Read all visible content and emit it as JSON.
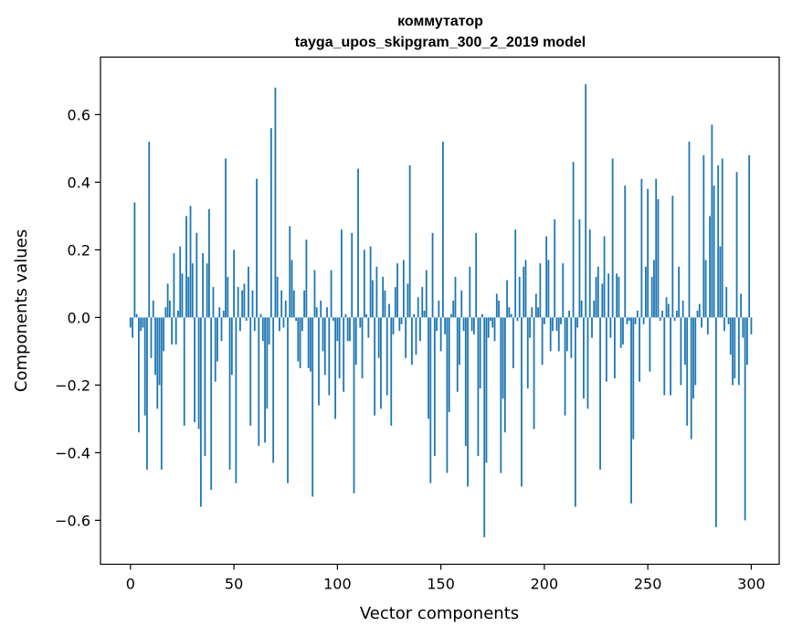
{
  "chart_data": {
    "type": "bar",
    "title": "коммутатор",
    "subtitle": "tayga_upos_skipgram_300_2_2019 model",
    "xlabel": "Vector components",
    "ylabel": "Components values",
    "xlim": [
      -14.5,
      313.5
    ],
    "ylim": [
      -0.73,
      0.77
    ],
    "xticks": [
      0,
      50,
      100,
      150,
      200,
      250,
      300
    ],
    "yticks": [
      -0.6,
      -0.4,
      -0.2,
      0.0,
      0.2,
      0.4,
      0.6
    ],
    "ytick_labels": [
      "−0.6",
      "−0.4",
      "−0.2",
      "0.0",
      "0.2",
      "0.4",
      "0.6"
    ],
    "color": "#1f77b4",
    "grid": false,
    "values": [
      -0.03,
      -0.06,
      0.34,
      0.01,
      -0.34,
      -0.04,
      -0.03,
      -0.29,
      -0.45,
      0.52,
      -0.12,
      0.05,
      -0.17,
      -0.27,
      -0.2,
      -0.45,
      -0.1,
      0.03,
      0.1,
      0.05,
      -0.08,
      0.19,
      -0.08,
      0.02,
      0.21,
      0.13,
      -0.32,
      0.3,
      0.12,
      0.33,
      0.16,
      -0.31,
      0.25,
      -0.33,
      -0.56,
      0.19,
      -0.41,
      0.16,
      0.32,
      -0.51,
      0.09,
      -0.19,
      -0.13,
      0.03,
      -0.07,
      0.02,
      0.47,
      0.12,
      -0.45,
      -0.17,
      0.2,
      -0.49,
      0.09,
      -0.04,
      0.08,
      0.1,
      -0.01,
      0.15,
      -0.32,
      0.08,
      -0.04,
      0.41,
      -0.38,
      0.01,
      -0.07,
      -0.37,
      -0.27,
      -0.08,
      0.56,
      -0.43,
      0.68,
      0.12,
      -0.04,
      0.08,
      -0.03,
      0.05,
      -0.49,
      0.27,
      0.17,
      0.08,
      -0.01,
      -0.13,
      -0.15,
      -0.04,
      0.08,
      0.23,
      -0.15,
      -0.16,
      -0.53,
      0.14,
      0.03,
      -0.26,
      0.05,
      -0.1,
      -0.17,
      0.03,
      -0.23,
      0.14,
      -0.01,
      -0.3,
      -0.07,
      -0.18,
      0.26,
      -0.22,
      0.01,
      -0.07,
      -0.07,
      0.25,
      -0.52,
      -0.14,
      0.44,
      -0.03,
      -0.18,
      0.2,
      0.01,
      -0.06,
      0.21,
      0.11,
      -0.29,
      0.15,
      -0.12,
      -0.27,
      0.12,
      0.08,
      -0.23,
      0.04,
      -0.32,
      -0.05,
      0.09,
      0.16,
      -0.04,
      -0.02,
      0.17,
      -0.12,
      0.1,
      0.45,
      -0.14,
      0.01,
      -0.11,
      0.06,
      -0.07,
      0.09,
      0.02,
      0.14,
      -0.3,
      -0.49,
      0.25,
      -0.41,
      -0.04,
      0.05,
      -0.1,
      0.52,
      -0.05,
      -0.46,
      -0.28,
      0.01,
      0.05,
      0.12,
      -0.22,
      -0.14,
      0.08,
      -0.04,
      -0.38,
      -0.5,
      0.15,
      -0.04,
      -0.05,
      0.25,
      -0.41,
      -0.21,
      0.01,
      -0.65,
      -0.43,
      -0.06,
      -0.01,
      -0.03,
      -0.07,
      0.07,
      0.05,
      -0.46,
      -0.24,
      -0.34,
      0.11,
      0.03,
      0.01,
      -0.15,
      0.26,
      -0.01,
      0.12,
      -0.5,
      0.15,
      0.17,
      -0.21,
      -0.06,
      0.03,
      -0.33,
      0.07,
      0.03,
      0.16,
      -0.14,
      -0.02,
      0.24,
      0.17,
      -0.1,
      -0.04,
      0.29,
      -0.04,
      -0.1,
      -0.02,
      0.16,
      -0.29,
      -0.1,
      0.02,
      -0.12,
      0.46,
      -0.56,
      -0.03,
      0.29,
      0.05,
      -0.24,
      0.69,
      -0.27,
      0.26,
      -0.06,
      0.05,
      0.12,
      0.15,
      -0.45,
      0.1,
      0.24,
      -0.19,
      0.13,
      -0.06,
      0.47,
      -0.18,
      0.13,
      0.12,
      -0.09,
      -0.08,
      0.39,
      -0.02,
      -0.01,
      -0.55,
      -0.36,
      -0.02,
      0.02,
      -0.19,
      0.41,
      -0.02,
      0.15,
      0.38,
      -0.16,
      0.12,
      0.17,
      0.41,
      0.35,
      -0.01,
      0.02,
      -0.23,
      0.06,
      0.04,
      -0.23,
      0.36,
      -0.01,
      0.02,
      0.15,
      -0.2,
      0.05,
      -0.14,
      -0.32,
      0.52,
      -0.36,
      -0.24,
      -0.2,
      0.02,
      0.04,
      -0.03,
      0.48,
      0.17,
      -0.05,
      0.3,
      0.57,
      0.39,
      -0.62,
      0.45,
      0.21,
      0.47,
      -0.04,
      0.09,
      -0.02,
      -0.11,
      -0.2,
      -0.18,
      0.43,
      -0.2,
      0.07,
      -0.06,
      -0.6,
      -0.14,
      0.48,
      -0.05
    ]
  }
}
